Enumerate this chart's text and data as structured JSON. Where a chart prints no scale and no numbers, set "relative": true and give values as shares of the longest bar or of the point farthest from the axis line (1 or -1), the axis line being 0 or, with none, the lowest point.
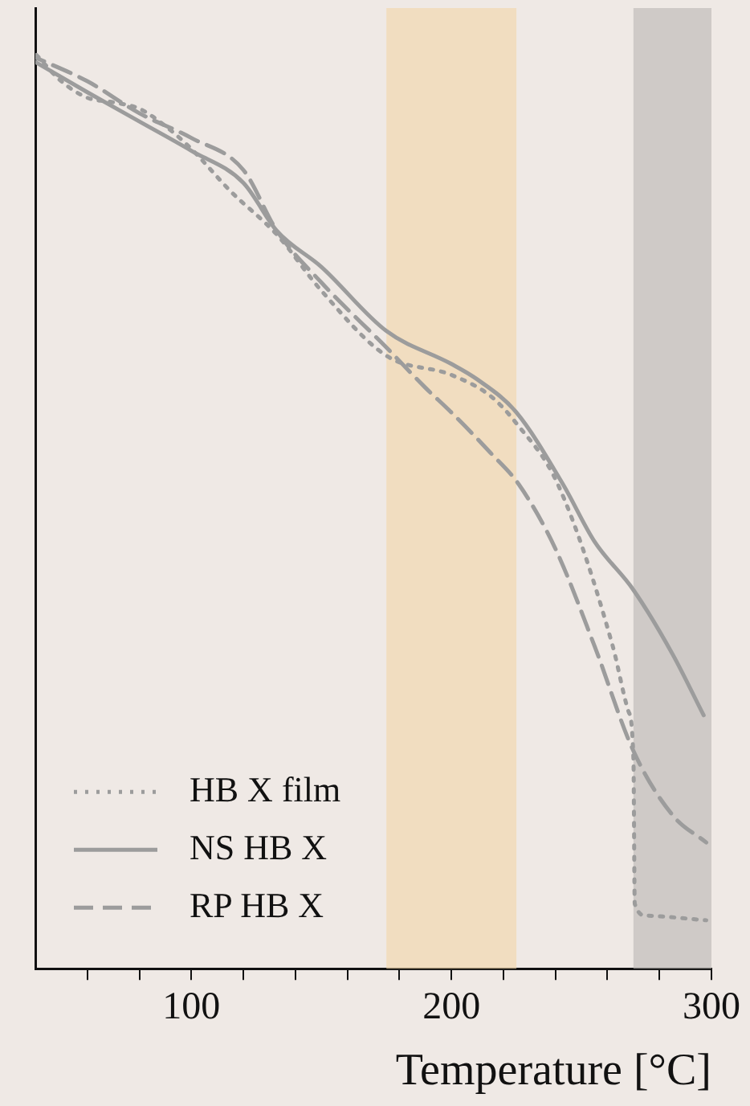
{
  "chart_data": {
    "type": "line",
    "xlabel": "Temperature [°C]",
    "relative": true,
    "xlim": [
      40,
      300
    ],
    "xticks": [
      {
        "value": 60,
        "label": null
      },
      {
        "value": 80,
        "label": null
      },
      100,
      {
        "value": 120,
        "label": null
      },
      {
        "value": 140,
        "label": null
      },
      {
        "value": 160,
        "label": null
      },
      {
        "value": 180,
        "label": null
      },
      200,
      {
        "value": 220,
        "label": null
      },
      {
        "value": 240,
        "label": null
      },
      {
        "value": 260,
        "label": null
      },
      {
        "value": 280,
        "label": null
      },
      300
    ],
    "series": [
      {
        "name": "HB X film",
        "color": "#9c9c9c",
        "line_style": "dotted",
        "x": [
          40,
          50,
          60,
          70,
          80,
          90,
          100,
          115,
          133,
          150,
          175,
          200,
          215,
          225,
          241,
          262,
          268,
          270,
          270.5,
          275,
          298
        ],
        "values": [
          1,
          0.97,
          0.952,
          0.947,
          0.94,
          0.921,
          0.896,
          0.85,
          0.802,
          0.741,
          0.67,
          0.649,
          0.626,
          0.596,
          0.529,
          0.353,
          0.282,
          0.229,
          0.071,
          0.058,
          0.053
        ]
      },
      {
        "name": "NS HB X",
        "color": "#9c9c9c",
        "line_style": "solid",
        "x": [
          40,
          60,
          80,
          100,
          120,
          133,
          150,
          175,
          200,
          210,
          225,
          243,
          255,
          270,
          285,
          297
        ],
        "values": [
          0.991,
          0.958,
          0.926,
          0.894,
          0.859,
          0.806,
          0.767,
          0.697,
          0.661,
          0.644,
          0.608,
          0.529,
          0.467,
          0.414,
          0.344,
          0.277
        ]
      },
      {
        "name": "RP HB X",
        "color": "#9c9c9c",
        "line_style": "dashed",
        "x": [
          40,
          60,
          80,
          100,
          120,
          133,
          150,
          175,
          190,
          200,
          215,
          226,
          240,
          255,
          270,
          285,
          298
        ],
        "values": [
          0.996,
          0.97,
          0.935,
          0.908,
          0.873,
          0.806,
          0.75,
          0.679,
          0.635,
          0.608,
          0.564,
          0.529,
          0.459,
          0.353,
          0.238,
          0.168,
          0.138
        ]
      }
    ],
    "bands": [
      {
        "axis": "x",
        "from": 175,
        "to": 225,
        "color": "#f2d6a6"
      },
      {
        "axis": "x",
        "from": 270,
        "to": 300,
        "color": "#b9b5b2"
      }
    ],
    "legend": "bottom left",
    "grid": false
  }
}
